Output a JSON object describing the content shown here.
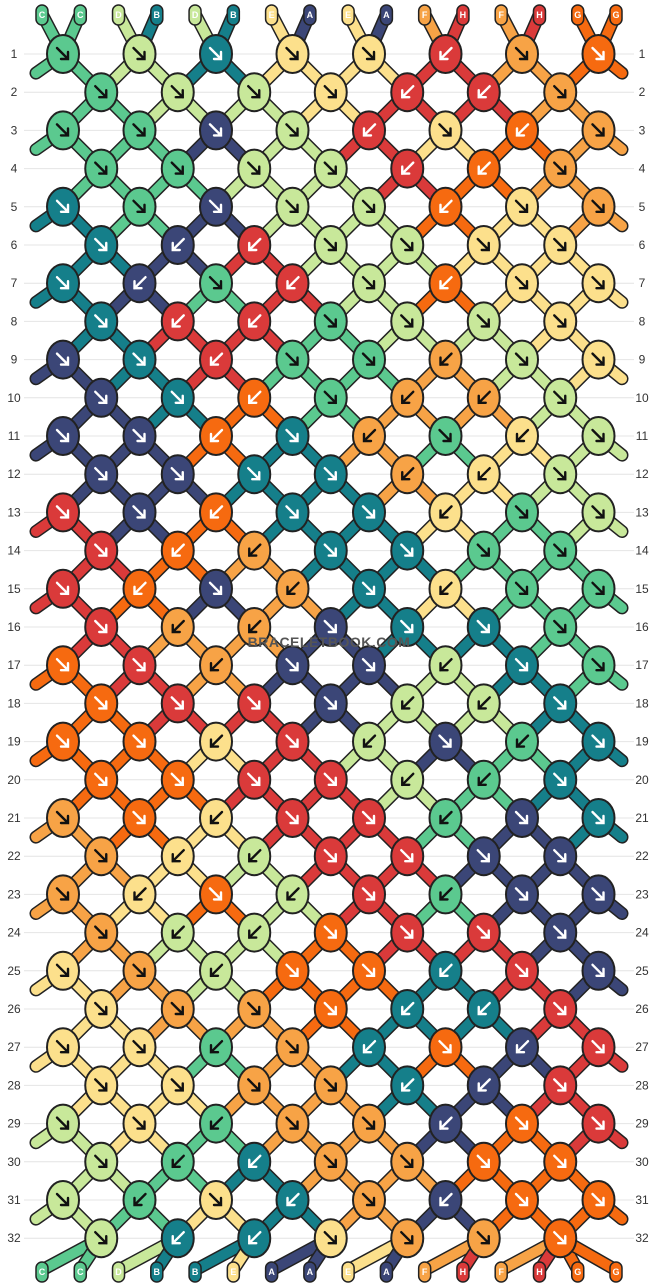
{
  "colors": {
    "C": "#5bc98f",
    "D": "#c8e89a",
    "B": "#157f8a",
    "E": "#fce08c",
    "A": "#3b4677",
    "F": "#f7a346",
    "H": "#da3a3a",
    "G": "#f66a10"
  },
  "top_labels": [
    "C",
    "C",
    "D",
    "B",
    "D",
    "B",
    "E",
    "A",
    "E",
    "A",
    "F",
    "H",
    "F",
    "H",
    "G",
    "G"
  ],
  "bottom_labels": [
    "C",
    "C",
    "D",
    "B",
    "B",
    "E",
    "A",
    "A",
    "E",
    "A",
    "F",
    "H",
    "F",
    "H",
    "G",
    "G"
  ],
  "row_numbers": [
    "1",
    "2",
    "3",
    "4",
    "5",
    "6",
    "7",
    "8",
    "9",
    "10",
    "11",
    "12",
    "13",
    "14",
    "15",
    "16",
    "17",
    "18",
    "19",
    "20",
    "21",
    "22",
    "23",
    "24",
    "25",
    "26",
    "27",
    "28",
    "29",
    "30",
    "31",
    "32"
  ],
  "watermark": "BRACELETBOOK.COM",
  "knots": [
    {
      "row": 1,
      "items": [
        [
          "C",
          "r"
        ],
        [
          "D",
          "r"
        ],
        [
          "B",
          "r"
        ],
        [
          "E",
          "r"
        ],
        [
          "E",
          "r"
        ],
        [
          "H",
          "l"
        ],
        [
          "F",
          "r"
        ],
        [
          "G",
          "r"
        ]
      ]
    },
    {
      "row": 2,
      "items": [
        [
          "C",
          "r"
        ],
        [
          "D",
          "r"
        ],
        [
          "D",
          "r"
        ],
        [
          "E",
          "r"
        ],
        [
          "H",
          "l"
        ],
        [
          "H",
          "l"
        ],
        [
          "F",
          "r"
        ]
      ]
    },
    {
      "row": 3,
      "items": [
        [
          "C",
          "r"
        ],
        [
          "C",
          "r"
        ],
        [
          "A",
          "r"
        ],
        [
          "D",
          "r"
        ],
        [
          "H",
          "l"
        ],
        [
          "E",
          "r"
        ],
        [
          "G",
          "l"
        ],
        [
          "F",
          "r"
        ]
      ]
    },
    {
      "row": 4,
      "items": [
        [
          "C",
          "r"
        ],
        [
          "C",
          "r"
        ],
        [
          "D",
          "r"
        ],
        [
          "D",
          "r"
        ],
        [
          "H",
          "l"
        ],
        [
          "G",
          "l"
        ],
        [
          "F",
          "r"
        ]
      ]
    },
    {
      "row": 5,
      "items": [
        [
          "B",
          "r"
        ],
        [
          "C",
          "r"
        ],
        [
          "A",
          "r"
        ],
        [
          "D",
          "r"
        ],
        [
          "D",
          "r"
        ],
        [
          "G",
          "l"
        ],
        [
          "E",
          "r"
        ],
        [
          "F",
          "r"
        ]
      ]
    },
    {
      "row": 6,
      "items": [
        [
          "B",
          "r"
        ],
        [
          "A",
          "l"
        ],
        [
          "H",
          "l"
        ],
        [
          "D",
          "r"
        ],
        [
          "D",
          "r"
        ],
        [
          "E",
          "r"
        ],
        [
          "E",
          "r"
        ]
      ]
    },
    {
      "row": 7,
      "items": [
        [
          "B",
          "r"
        ],
        [
          "A",
          "l"
        ],
        [
          "C",
          "r"
        ],
        [
          "H",
          "l"
        ],
        [
          "D",
          "r"
        ],
        [
          "G",
          "l"
        ],
        [
          "E",
          "r"
        ],
        [
          "E",
          "r"
        ]
      ]
    },
    {
      "row": 8,
      "items": [
        [
          "B",
          "r"
        ],
        [
          "H",
          "l"
        ],
        [
          "H",
          "l"
        ],
        [
          "C",
          "r"
        ],
        [
          "D",
          "r"
        ],
        [
          "D",
          "r"
        ],
        [
          "E",
          "r"
        ]
      ]
    },
    {
      "row": 9,
      "items": [
        [
          "A",
          "r"
        ],
        [
          "B",
          "r"
        ],
        [
          "H",
          "l"
        ],
        [
          "C",
          "r"
        ],
        [
          "C",
          "r"
        ],
        [
          "F",
          "l"
        ],
        [
          "D",
          "r"
        ],
        [
          "E",
          "r"
        ]
      ]
    },
    {
      "row": 10,
      "items": [
        [
          "A",
          "r"
        ],
        [
          "B",
          "r"
        ],
        [
          "G",
          "l"
        ],
        [
          "C",
          "r"
        ],
        [
          "F",
          "l"
        ],
        [
          "F",
          "l"
        ],
        [
          "D",
          "r"
        ]
      ]
    },
    {
      "row": 11,
      "items": [
        [
          "A",
          "r"
        ],
        [
          "A",
          "r"
        ],
        [
          "G",
          "l"
        ],
        [
          "B",
          "r"
        ],
        [
          "F",
          "l"
        ],
        [
          "C",
          "r"
        ],
        [
          "E",
          "l"
        ],
        [
          "D",
          "r"
        ]
      ]
    },
    {
      "row": 12,
      "items": [
        [
          "A",
          "r"
        ],
        [
          "A",
          "r"
        ],
        [
          "B",
          "r"
        ],
        [
          "B",
          "r"
        ],
        [
          "F",
          "l"
        ],
        [
          "E",
          "l"
        ],
        [
          "D",
          "r"
        ]
      ]
    },
    {
      "row": 13,
      "items": [
        [
          "H",
          "r"
        ],
        [
          "A",
          "r"
        ],
        [
          "G",
          "l"
        ],
        [
          "B",
          "r"
        ],
        [
          "B",
          "r"
        ],
        [
          "E",
          "l"
        ],
        [
          "C",
          "r"
        ],
        [
          "D",
          "r"
        ]
      ]
    },
    {
      "row": 14,
      "items": [
        [
          "H",
          "r"
        ],
        [
          "G",
          "l"
        ],
        [
          "F",
          "l"
        ],
        [
          "B",
          "r"
        ],
        [
          "B",
          "r"
        ],
        [
          "C",
          "r"
        ],
        [
          "C",
          "r"
        ]
      ]
    },
    {
      "row": 15,
      "items": [
        [
          "H",
          "r"
        ],
        [
          "G",
          "l"
        ],
        [
          "A",
          "r"
        ],
        [
          "F",
          "l"
        ],
        [
          "B",
          "r"
        ],
        [
          "E",
          "l"
        ],
        [
          "C",
          "r"
        ],
        [
          "C",
          "r"
        ]
      ]
    },
    {
      "row": 16,
      "items": [
        [
          "H",
          "r"
        ],
        [
          "F",
          "l"
        ],
        [
          "F",
          "l"
        ],
        [
          "A",
          "r"
        ],
        [
          "B",
          "r"
        ],
        [
          "B",
          "r"
        ],
        [
          "C",
          "r"
        ]
      ]
    },
    {
      "row": 17,
      "items": [
        [
          "G",
          "r"
        ],
        [
          "H",
          "r"
        ],
        [
          "F",
          "l"
        ],
        [
          "A",
          "r"
        ],
        [
          "A",
          "r"
        ],
        [
          "D",
          "l"
        ],
        [
          "B",
          "r"
        ],
        [
          "C",
          "r"
        ]
      ]
    },
    {
      "row": 18,
      "items": [
        [
          "G",
          "r"
        ],
        [
          "H",
          "r"
        ],
        [
          "H",
          "r"
        ],
        [
          "A",
          "r"
        ],
        [
          "D",
          "l"
        ],
        [
          "D",
          "l"
        ],
        [
          "B",
          "r"
        ]
      ]
    },
    {
      "row": 19,
      "items": [
        [
          "G",
          "r"
        ],
        [
          "G",
          "r"
        ],
        [
          "E",
          "l"
        ],
        [
          "H",
          "r"
        ],
        [
          "D",
          "l"
        ],
        [
          "A",
          "r"
        ],
        [
          "C",
          "l"
        ],
        [
          "B",
          "r"
        ]
      ]
    },
    {
      "row": 20,
      "items": [
        [
          "G",
          "r"
        ],
        [
          "G",
          "r"
        ],
        [
          "H",
          "r"
        ],
        [
          "H",
          "r"
        ],
        [
          "D",
          "l"
        ],
        [
          "C",
          "l"
        ],
        [
          "B",
          "r"
        ]
      ]
    },
    {
      "row": 21,
      "items": [
        [
          "F",
          "r"
        ],
        [
          "G",
          "r"
        ],
        [
          "E",
          "l"
        ],
        [
          "H",
          "r"
        ],
        [
          "H",
          "r"
        ],
        [
          "C",
          "l"
        ],
        [
          "A",
          "r"
        ],
        [
          "B",
          "r"
        ]
      ]
    },
    {
      "row": 22,
      "items": [
        [
          "F",
          "r"
        ],
        [
          "E",
          "l"
        ],
        [
          "D",
          "l"
        ],
        [
          "H",
          "r"
        ],
        [
          "H",
          "r"
        ],
        [
          "A",
          "r"
        ],
        [
          "A",
          "r"
        ]
      ]
    },
    {
      "row": 23,
      "items": [
        [
          "F",
          "r"
        ],
        [
          "E",
          "l"
        ],
        [
          "G",
          "r"
        ],
        [
          "D",
          "l"
        ],
        [
          "H",
          "r"
        ],
        [
          "C",
          "l"
        ],
        [
          "A",
          "r"
        ],
        [
          "A",
          "r"
        ]
      ]
    },
    {
      "row": 24,
      "items": [
        [
          "F",
          "r"
        ],
        [
          "D",
          "l"
        ],
        [
          "D",
          "l"
        ],
        [
          "G",
          "r"
        ],
        [
          "H",
          "r"
        ],
        [
          "H",
          "r"
        ],
        [
          "A",
          "r"
        ]
      ]
    },
    {
      "row": 25,
      "items": [
        [
          "E",
          "r"
        ],
        [
          "F",
          "r"
        ],
        [
          "D",
          "l"
        ],
        [
          "G",
          "r"
        ],
        [
          "G",
          "r"
        ],
        [
          "B",
          "l"
        ],
        [
          "H",
          "r"
        ],
        [
          "A",
          "r"
        ]
      ]
    },
    {
      "row": 26,
      "items": [
        [
          "E",
          "r"
        ],
        [
          "F",
          "r"
        ],
        [
          "F",
          "r"
        ],
        [
          "G",
          "r"
        ],
        [
          "B",
          "l"
        ],
        [
          "B",
          "l"
        ],
        [
          "H",
          "r"
        ]
      ]
    },
    {
      "row": 27,
      "items": [
        [
          "E",
          "r"
        ],
        [
          "E",
          "r"
        ],
        [
          "C",
          "l"
        ],
        [
          "F",
          "r"
        ],
        [
          "B",
          "l"
        ],
        [
          "G",
          "r"
        ],
        [
          "A",
          "l"
        ],
        [
          "H",
          "r"
        ]
      ]
    },
    {
      "row": 28,
      "items": [
        [
          "E",
          "r"
        ],
        [
          "E",
          "r"
        ],
        [
          "F",
          "r"
        ],
        [
          "F",
          "r"
        ],
        [
          "B",
          "l"
        ],
        [
          "A",
          "l"
        ],
        [
          "H",
          "r"
        ]
      ]
    },
    {
      "row": 29,
      "items": [
        [
          "D",
          "r"
        ],
        [
          "E",
          "r"
        ],
        [
          "C",
          "l"
        ],
        [
          "F",
          "r"
        ],
        [
          "F",
          "r"
        ],
        [
          "A",
          "l"
        ],
        [
          "G",
          "r"
        ],
        [
          "H",
          "r"
        ]
      ]
    },
    {
      "row": 30,
      "items": [
        [
          "D",
          "r"
        ],
        [
          "C",
          "l"
        ],
        [
          "B",
          "l"
        ],
        [
          "F",
          "r"
        ],
        [
          "F",
          "r"
        ],
        [
          "G",
          "r"
        ],
        [
          "G",
          "r"
        ]
      ]
    },
    {
      "row": 31,
      "items": [
        [
          "D",
          "r"
        ],
        [
          "C",
          "l"
        ],
        [
          "E",
          "r"
        ],
        [
          "B",
          "l"
        ],
        [
          "F",
          "r"
        ],
        [
          "A",
          "l"
        ],
        [
          "G",
          "r"
        ],
        [
          "G",
          "r"
        ]
      ]
    },
    {
      "row": 32,
      "items": [
        [
          "D",
          "r"
        ],
        [
          "B",
          "l"
        ],
        [
          "B",
          "l"
        ],
        [
          "E",
          "r"
        ],
        [
          "F",
          "r"
        ],
        [
          "F",
          "r"
        ],
        [
          "G",
          "r"
        ]
      ]
    }
  ]
}
